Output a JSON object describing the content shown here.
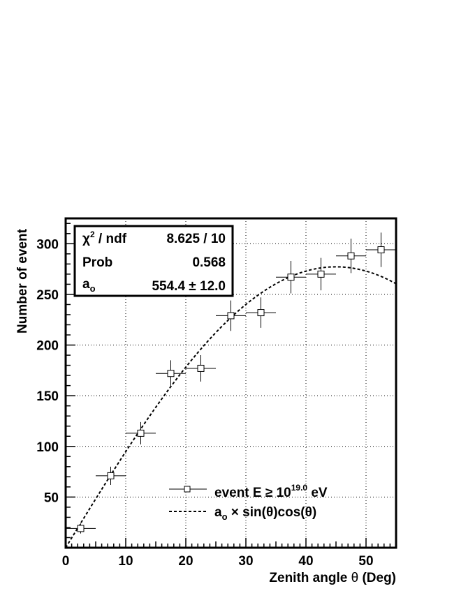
{
  "chart_data": {
    "type": "scatter",
    "xlabel": "Zenith angle θ (Deg)",
    "ylabel": "Number of event",
    "xlim": [
      0,
      55
    ],
    "ylim": [
      0,
      325
    ],
    "xticks": [
      0,
      10,
      20,
      30,
      40,
      50
    ],
    "yticks": [
      50,
      100,
      150,
      200,
      250,
      300
    ],
    "grid": true,
    "series": [
      {
        "name": "event E ≥ 10^19.0 eV",
        "marker": "open-square",
        "x": [
          2.5,
          7.5,
          12.5,
          17.5,
          22.5,
          27.5,
          32.5,
          37.5,
          42.5,
          47.5,
          52.5
        ],
        "y": [
          19,
          71,
          113,
          172,
          177,
          229,
          232,
          267,
          270,
          288,
          294
        ],
        "x_err": [
          2.5,
          2.5,
          2.5,
          2.5,
          2.5,
          2.5,
          2.5,
          2.5,
          2.5,
          2.5,
          2.5
        ],
        "y_err": [
          5,
          9,
          11,
          13,
          13,
          15,
          15,
          16,
          16,
          17,
          17
        ]
      },
      {
        "name": "a_o × sin(θ)cos(θ)",
        "line_style": "dashed",
        "function": "a*sin(theta)*cos(theta)",
        "a": 554.4
      }
    ],
    "legend_position": "bottom-right",
    "stats_box": {
      "position": "top-left",
      "rows": [
        {
          "label": "χ² / ndf",
          "value": "8.625 / 10"
        },
        {
          "label": "Prob",
          "value": "0.568"
        },
        {
          "label": "a_o",
          "value": "554.4 ± 12.0"
        }
      ]
    }
  },
  "labels": {
    "xlabel_main": "Zenith angle ",
    "xlabel_theta": "θ",
    "xlabel_unit": " (Deg)",
    "ylabel": "Number of event",
    "chi_symbol": "χ",
    "chi_sup": "2",
    "chi_rest": " / ndf",
    "chi_value": "8.625 / 10",
    "prob_label": "Prob",
    "prob_value": "0.568",
    "a_label": "a",
    "a_sub": "o",
    "a_value": "554.4 ± 12.0",
    "legend_data_prefix": "event E ≥ 10",
    "legend_data_sup": "19.0",
    "legend_data_suffix": " eV",
    "legend_fit_a": "a",
    "legend_fit_sub": "o",
    "legend_fit_rest": " × sin(θ)cos(θ)"
  }
}
